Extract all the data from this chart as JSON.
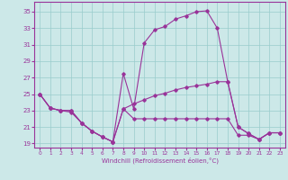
{
  "xlabel": "Windchill (Refroidissement éolien,°C)",
  "background_color": "#cce8e8",
  "line_color": "#993399",
  "marker": "D",
  "markersize": 1.8,
  "linewidth": 0.8,
  "xlim": [
    -0.5,
    23.5
  ],
  "ylim": [
    18.5,
    36.2
  ],
  "xticks": [
    0,
    1,
    2,
    3,
    4,
    5,
    6,
    7,
    8,
    9,
    10,
    11,
    12,
    13,
    14,
    15,
    16,
    17,
    18,
    19,
    20,
    21,
    22,
    23
  ],
  "yticks": [
    19,
    21,
    23,
    25,
    27,
    29,
    31,
    33,
    35
  ],
  "grid_color": "#99cccc",
  "series": [
    {
      "x": [
        0,
        1,
        2,
        3,
        4,
        5,
        6,
        7,
        8,
        9,
        10,
        11,
        12,
        13,
        14,
        15,
        16,
        17,
        18,
        19,
        20,
        21,
        22,
        23
      ],
      "y": [
        25.0,
        23.3,
        23.0,
        23.0,
        21.5,
        20.5,
        19.8,
        19.2,
        27.5,
        23.2,
        31.2,
        32.8,
        33.2,
        34.1,
        34.5,
        35.0,
        35.1,
        33.0,
        26.5,
        21.0,
        20.2,
        19.5,
        20.3,
        20.3
      ]
    },
    {
      "x": [
        0,
        1,
        2,
        3,
        4,
        5,
        6,
        7,
        8,
        9,
        10,
        11,
        12,
        13,
        14,
        15,
        16,
        17,
        18,
        19,
        20,
        21,
        22,
        23
      ],
      "y": [
        25.0,
        23.3,
        23.0,
        23.0,
        21.5,
        20.5,
        19.8,
        19.2,
        23.2,
        23.8,
        24.3,
        24.8,
        25.1,
        25.5,
        25.8,
        26.0,
        26.2,
        26.5,
        26.5,
        21.0,
        20.2,
        19.5,
        20.3,
        20.3
      ]
    },
    {
      "x": [
        0,
        1,
        2,
        3,
        4,
        5,
        6,
        7,
        8,
        9,
        10,
        11,
        12,
        13,
        14,
        15,
        16,
        17,
        18,
        19,
        20,
        21,
        22,
        23
      ],
      "y": [
        25.0,
        23.3,
        23.0,
        22.8,
        21.5,
        20.5,
        19.8,
        19.2,
        23.2,
        22.0,
        22.0,
        22.0,
        22.0,
        22.0,
        22.0,
        22.0,
        22.0,
        22.0,
        22.0,
        20.0,
        20.0,
        19.5,
        20.3,
        20.3
      ]
    }
  ]
}
